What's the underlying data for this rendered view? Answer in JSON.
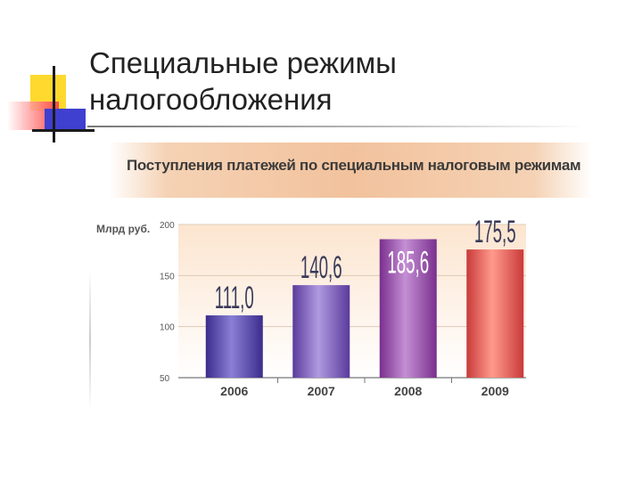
{
  "slide": {
    "title_line1": "Специальные режимы",
    "title_line2": "налогообложения"
  },
  "chart_data": {
    "type": "bar",
    "title": "Поступления платежей по специальным налоговым режимам",
    "ylabel": "Млрд руб.",
    "categories": [
      "2006",
      "2007",
      "2008",
      "2009"
    ],
    "values": [
      111.0,
      140.6,
      185.6,
      175.5
    ],
    "value_labels": [
      "111,0",
      "140,6",
      "185,6",
      "175,5"
    ],
    "ylim": [
      50,
      200
    ],
    "yticks": [
      50,
      100,
      150,
      200
    ],
    "ytick_labels": [
      "50",
      "100",
      "150",
      "200"
    ],
    "grid": false,
    "colors": {
      "2006": [
        "#3b2c8c",
        "#8a7fd6"
      ],
      "2007": [
        "#5a3a9c",
        "#b09ae0"
      ],
      "2008": [
        "#7a2f8e",
        "#c48fd4"
      ],
      "2009": [
        "#c93a3a",
        "#ff9a8c"
      ],
      "plot_bg_top": "#fce5cf",
      "plot_bg_bottom": "#ffffff"
    }
  }
}
